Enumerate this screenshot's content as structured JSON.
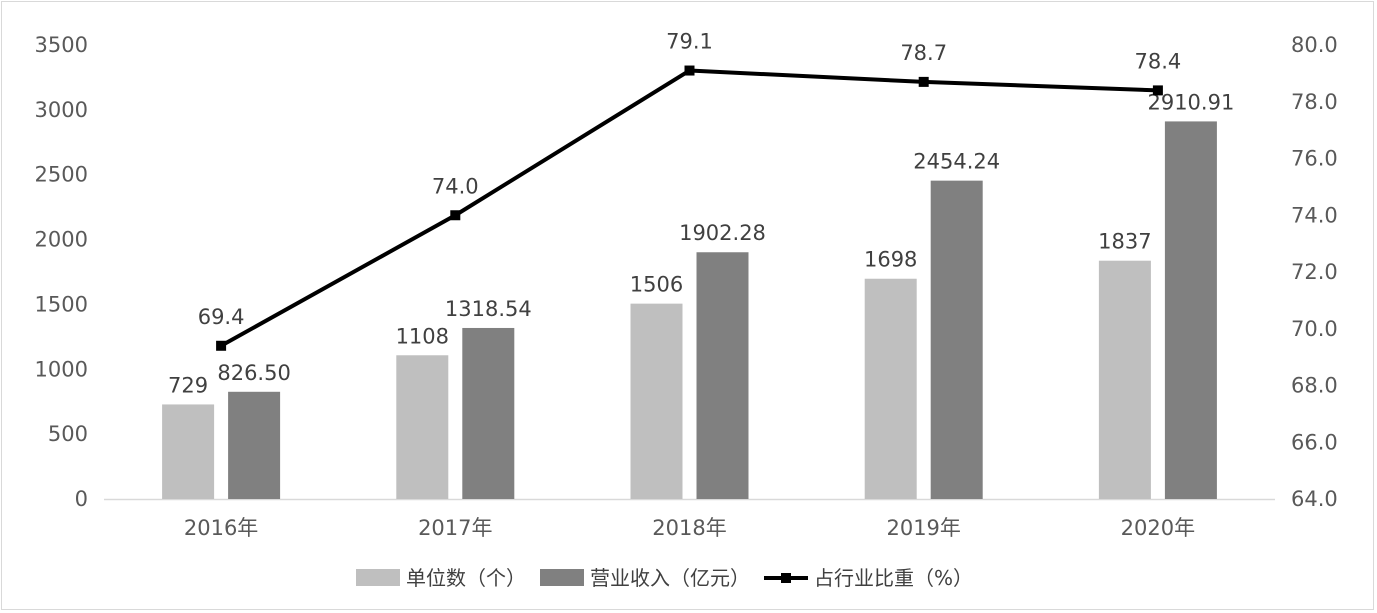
{
  "chart_data": {
    "type": "bar",
    "title": "",
    "categories": [
      "2016年",
      "2017年",
      "2018年",
      "2019年",
      "2020年"
    ],
    "series": [
      {
        "name": "单位数（个）",
        "kind": "bar",
        "axis": "left",
        "color": "#bfbfbf",
        "values": [
          729,
          1108,
          1506,
          1698,
          1837
        ],
        "labels": [
          "729",
          "1108",
          "1506",
          "1698",
          "1837"
        ]
      },
      {
        "name": "营业收入（亿元）",
        "kind": "bar",
        "axis": "left",
        "color": "#808080",
        "values": [
          826.5,
          1318.54,
          1902.28,
          2454.24,
          2910.91
        ],
        "labels": [
          "826.50",
          "1318.54",
          "1902.28",
          "2454.24",
          "2910.91"
        ]
      },
      {
        "name": "占行业比重（%）",
        "kind": "line",
        "axis": "right",
        "color": "#000000",
        "values": [
          69.4,
          74.0,
          79.1,
          78.7,
          78.4
        ],
        "labels": [
          "69.4",
          "74.0",
          "79.1",
          "78.7",
          "78.4"
        ]
      }
    ],
    "y_left": {
      "lim": [
        0,
        3500
      ],
      "ticks": [
        "0",
        "500",
        "1000",
        "1500",
        "2000",
        "2500",
        "3000",
        "3500"
      ]
    },
    "y_right": {
      "lim": [
        64,
        80
      ],
      "ticks": [
        "64.0",
        "66.0",
        "68.0",
        "70.0",
        "72.0",
        "74.0",
        "76.0",
        "78.0",
        "80.0"
      ]
    },
    "grid": false,
    "legend_position": "bottom"
  }
}
